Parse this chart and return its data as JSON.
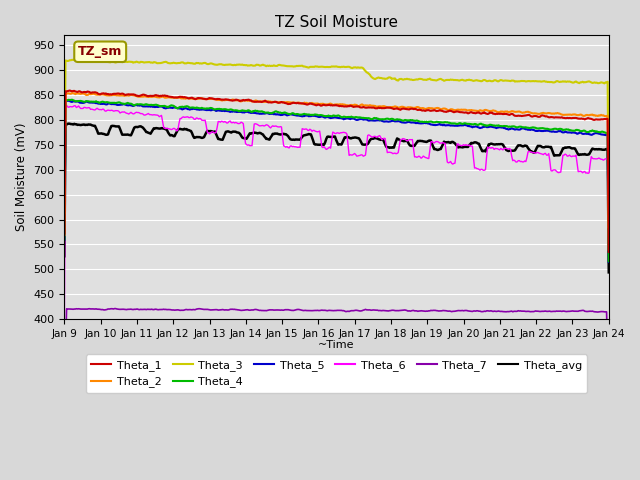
{
  "title": "TZ Soil Moisture",
  "ylabel": "Soil Moisture (mV)",
  "xlabel": "~Time",
  "ylim": [
    400,
    970
  ],
  "yticks": [
    400,
    450,
    500,
    550,
    600,
    650,
    700,
    750,
    800,
    850,
    900,
    950
  ],
  "x_labels": [
    "Jan 9",
    "Jan 10",
    "Jan 11",
    "Jan 12",
    "Jan 13",
    "Jan 14",
    "Jan 15",
    "Jan 16",
    "Jan 17",
    "Jan 18",
    "Jan 19",
    "Jan 20",
    "Jan 21",
    "Jan 22",
    "Jan 23",
    "Jan 24"
  ],
  "watermark": "TZ_sm",
  "colors": {
    "Theta_1": "#cc0000",
    "Theta_2": "#ff8800",
    "Theta_3": "#cccc00",
    "Theta_4": "#00bb00",
    "Theta_5": "#0000cc",
    "Theta_6": "#ff00ff",
    "Theta_7": "#8800aa",
    "Theta_avg": "#000000"
  }
}
